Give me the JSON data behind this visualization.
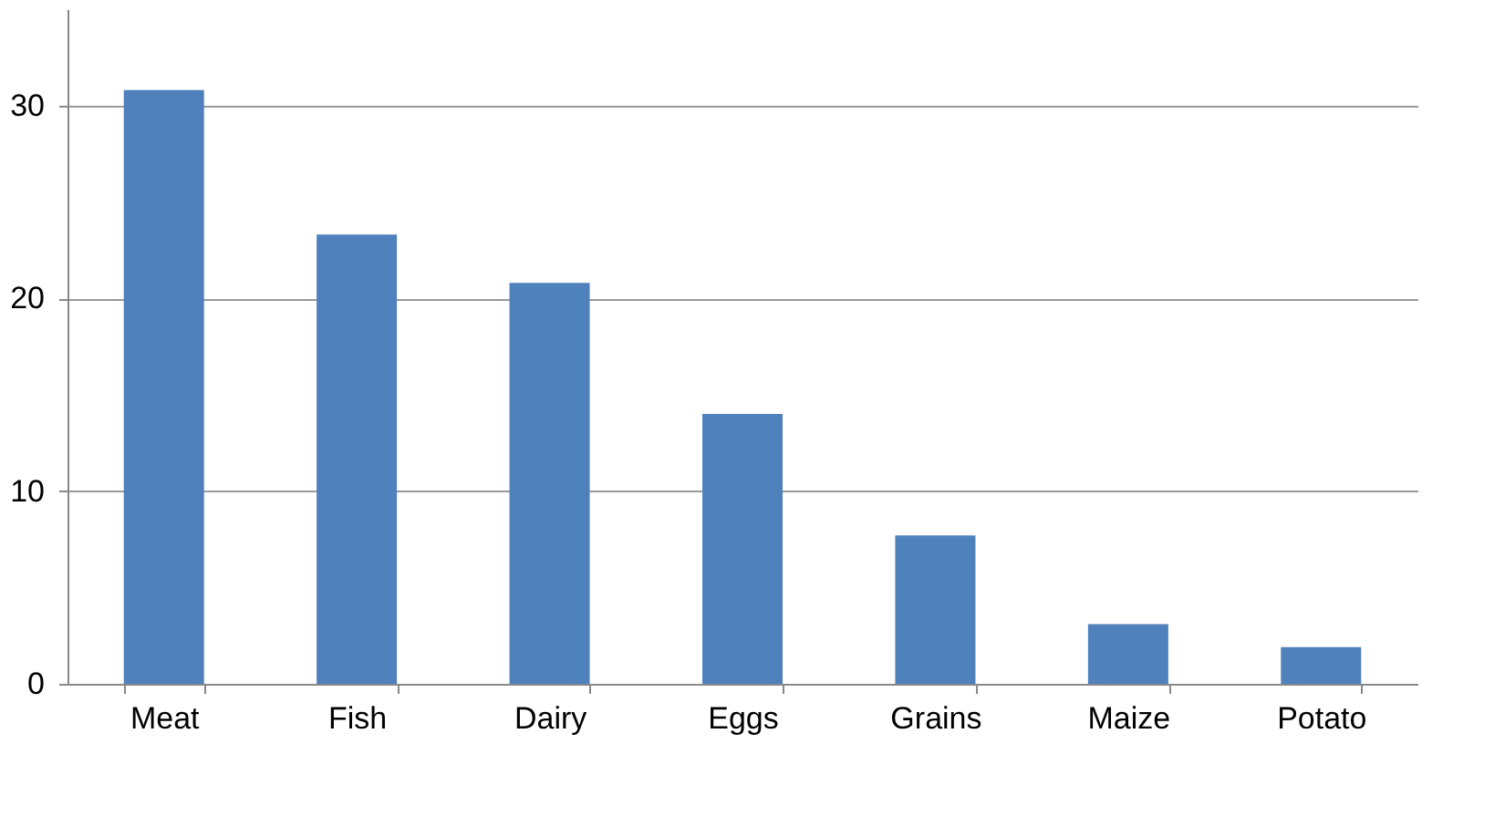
{
  "chart_data": {
    "type": "bar",
    "categories": [
      "Meat",
      "Fish",
      "Dairy",
      "Eggs",
      "Grains",
      "Maize",
      "Potato"
    ],
    "values": [
      30.8,
      23.3,
      20.8,
      14.0,
      7.7,
      3.1,
      1.9
    ],
    "color": "#4f81bd",
    "ylim": [
      0,
      35
    ],
    "yticks": [
      0,
      10,
      20,
      30
    ],
    "grid": "y"
  }
}
